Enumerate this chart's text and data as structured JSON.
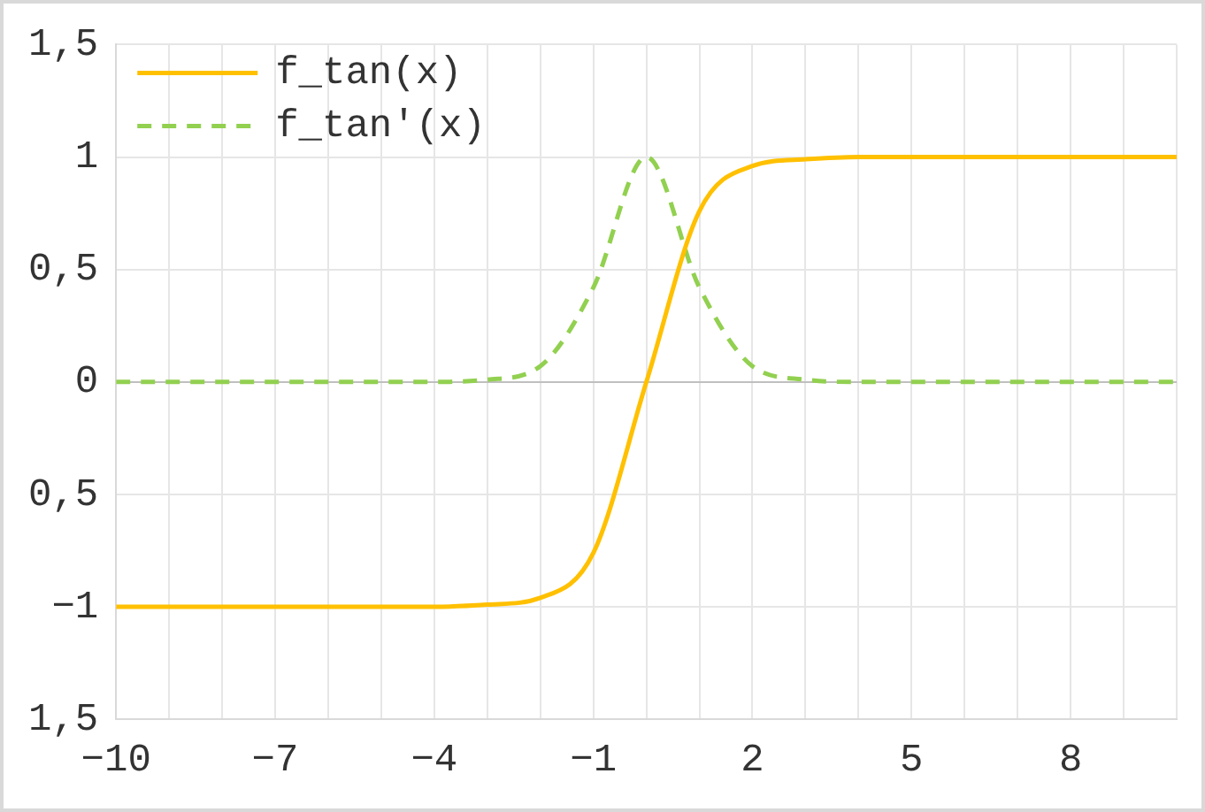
{
  "chart_data": {
    "type": "line",
    "x": [
      -10,
      -9,
      -8,
      -7,
      -6,
      -5,
      -4,
      -3,
      -2,
      -1,
      0,
      1,
      2,
      3,
      4,
      5,
      6,
      7,
      8,
      9,
      10
    ],
    "series": [
      {
        "name": "f_tan(x)",
        "color": "#ffc000",
        "line_style": "solid",
        "values": [
          -1,
          -1,
          -1,
          -1,
          -1,
          -1,
          -1,
          -0.99,
          -0.96,
          -0.76,
          0,
          0.76,
          0.96,
          0.99,
          1,
          1,
          1,
          1,
          1,
          1,
          1
        ]
      },
      {
        "name": "f_tan'(x)",
        "color": "#92d050",
        "line_style": "dashed",
        "values": [
          0,
          0,
          0,
          0,
          0,
          0,
          0,
          0.01,
          0.07,
          0.42,
          1,
          0.42,
          0.07,
          0.01,
          0,
          0,
          0,
          0,
          0,
          0,
          0
        ]
      }
    ],
    "xlim": [
      -10,
      10
    ],
    "xticks": [
      {
        "value": -10,
        "label": "−10"
      },
      {
        "value": -9,
        "label": null
      },
      {
        "value": -8,
        "label": null
      },
      {
        "value": -7,
        "label": "−7"
      },
      {
        "value": -6,
        "label": null
      },
      {
        "value": -5,
        "label": null
      },
      {
        "value": -4,
        "label": "−4"
      },
      {
        "value": -3,
        "label": null
      },
      {
        "value": -2,
        "label": null
      },
      {
        "value": -1,
        "label": "−1"
      },
      {
        "value": 0,
        "label": null
      },
      {
        "value": 1,
        "label": null
      },
      {
        "value": 2,
        "label": "2"
      },
      {
        "value": 3,
        "label": null
      },
      {
        "value": 4,
        "label": null
      },
      {
        "value": 5,
        "label": "5"
      },
      {
        "value": 6,
        "label": null
      },
      {
        "value": 7,
        "label": null
      },
      {
        "value": 8,
        "label": "8"
      },
      {
        "value": 9,
        "label": null
      },
      {
        "value": 10,
        "label": null
      }
    ],
    "ylim": [
      -1.5,
      1.5
    ],
    "yticks": [
      {
        "value": -1.5,
        "label": "1,5"
      },
      {
        "value": -1,
        "label": "−1"
      },
      {
        "value": -0.5,
        "label": "0,5"
      },
      {
        "value": 0,
        "label": "0"
      },
      {
        "value": 0.5,
        "label": "0,5"
      },
      {
        "value": 1,
        "label": "1"
      },
      {
        "value": 1.5,
        "label": "1,5"
      }
    ],
    "grid": true,
    "legend": "top left",
    "marker": "none"
  }
}
